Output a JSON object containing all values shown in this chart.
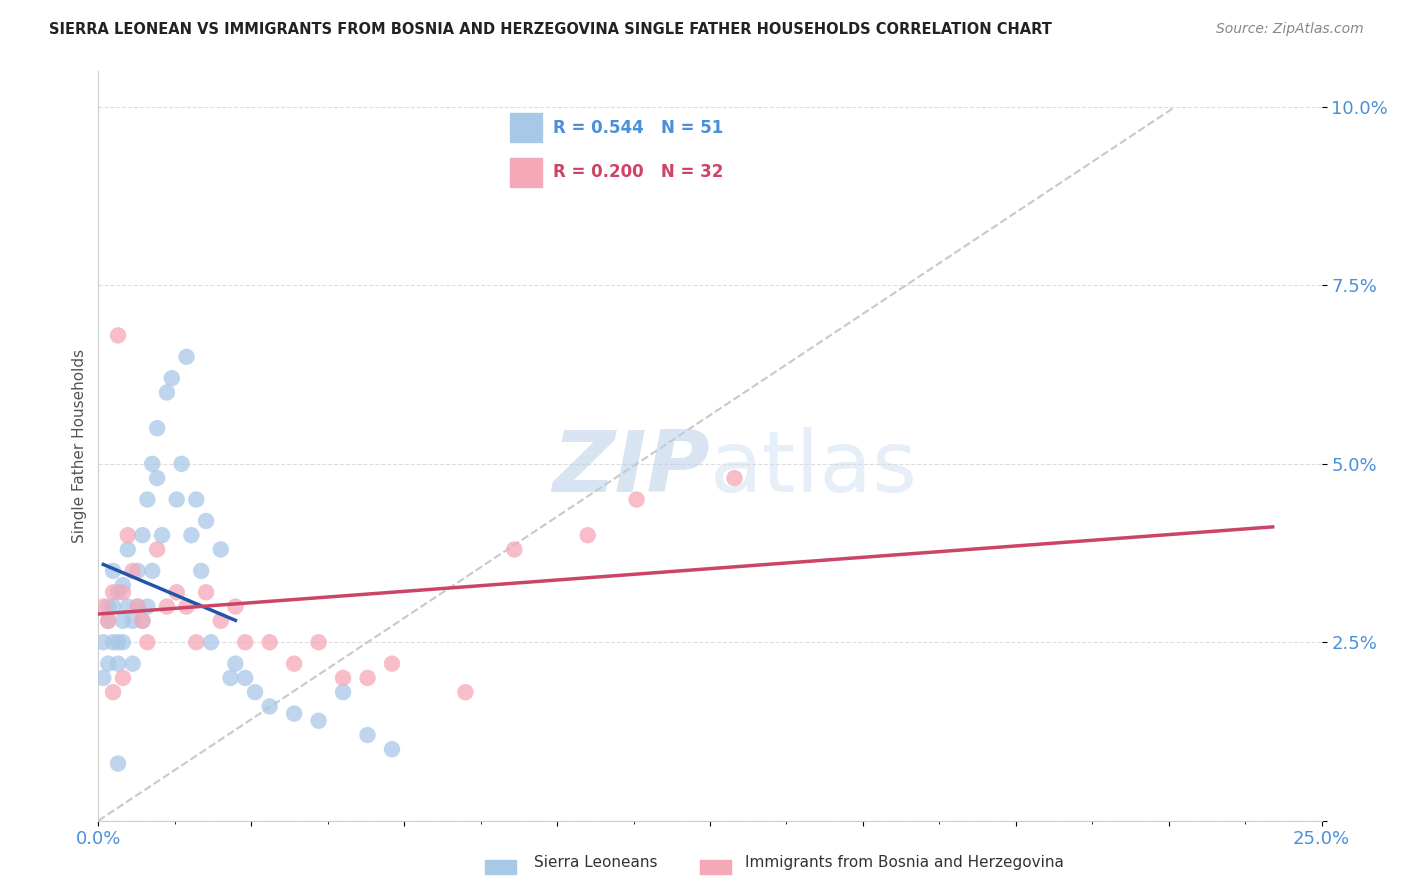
{
  "title": "SIERRA LEONEAN VS IMMIGRANTS FROM BOSNIA AND HERZEGOVINA SINGLE FATHER HOUSEHOLDS CORRELATION CHART",
  "source": "Source: ZipAtlas.com",
  "ylabel": "Single Father Households",
  "xlim": [
    0.0,
    0.25
  ],
  "ylim": [
    0.0,
    0.105
  ],
  "yticks": [
    0.0,
    0.025,
    0.05,
    0.075,
    0.1
  ],
  "ytick_labels": [
    "",
    "2.5%",
    "5.0%",
    "7.5%",
    "10.0%"
  ],
  "blue_R": "0.544",
  "blue_N": "51",
  "pink_R": "0.200",
  "pink_N": "32",
  "blue_color": "#a8c8e8",
  "pink_color": "#f5a8b8",
  "blue_line_color": "#2255aa",
  "pink_line_color": "#cc4466",
  "diag_line_color": "#bbbbbb",
  "legend_label_blue": "Sierra Leoneans",
  "legend_label_pink": "Immigrants from Bosnia and Herzegovina",
  "blue_scatter_x": [
    0.001,
    0.001,
    0.002,
    0.002,
    0.002,
    0.003,
    0.003,
    0.003,
    0.004,
    0.004,
    0.004,
    0.005,
    0.005,
    0.005,
    0.006,
    0.006,
    0.007,
    0.007,
    0.008,
    0.008,
    0.009,
    0.009,
    0.01,
    0.01,
    0.011,
    0.011,
    0.012,
    0.012,
    0.013,
    0.014,
    0.015,
    0.016,
    0.017,
    0.018,
    0.019,
    0.02,
    0.021,
    0.022,
    0.023,
    0.025,
    0.027,
    0.028,
    0.03,
    0.032,
    0.035,
    0.04,
    0.045,
    0.05,
    0.055,
    0.06,
    0.004
  ],
  "blue_scatter_y": [
    0.02,
    0.025,
    0.022,
    0.028,
    0.03,
    0.025,
    0.03,
    0.035,
    0.025,
    0.032,
    0.022,
    0.028,
    0.033,
    0.025,
    0.03,
    0.038,
    0.028,
    0.022,
    0.03,
    0.035,
    0.04,
    0.028,
    0.045,
    0.03,
    0.05,
    0.035,
    0.055,
    0.048,
    0.04,
    0.06,
    0.062,
    0.045,
    0.05,
    0.065,
    0.04,
    0.045,
    0.035,
    0.042,
    0.025,
    0.038,
    0.02,
    0.022,
    0.02,
    0.018,
    0.016,
    0.015,
    0.014,
    0.018,
    0.012,
    0.01,
    0.008
  ],
  "pink_scatter_x": [
    0.001,
    0.002,
    0.003,
    0.004,
    0.005,
    0.006,
    0.007,
    0.008,
    0.009,
    0.01,
    0.012,
    0.014,
    0.016,
    0.018,
    0.02,
    0.022,
    0.025,
    0.028,
    0.03,
    0.035,
    0.04,
    0.045,
    0.05,
    0.055,
    0.06,
    0.075,
    0.085,
    0.1,
    0.11,
    0.13,
    0.005,
    0.003
  ],
  "pink_scatter_y": [
    0.03,
    0.028,
    0.032,
    0.068,
    0.032,
    0.04,
    0.035,
    0.03,
    0.028,
    0.025,
    0.038,
    0.03,
    0.032,
    0.03,
    0.025,
    0.032,
    0.028,
    0.03,
    0.025,
    0.025,
    0.022,
    0.025,
    0.02,
    0.02,
    0.022,
    0.018,
    0.038,
    0.04,
    0.045,
    0.048,
    0.02,
    0.018
  ],
  "background_color": "#ffffff",
  "grid_color": "#dddddd"
}
